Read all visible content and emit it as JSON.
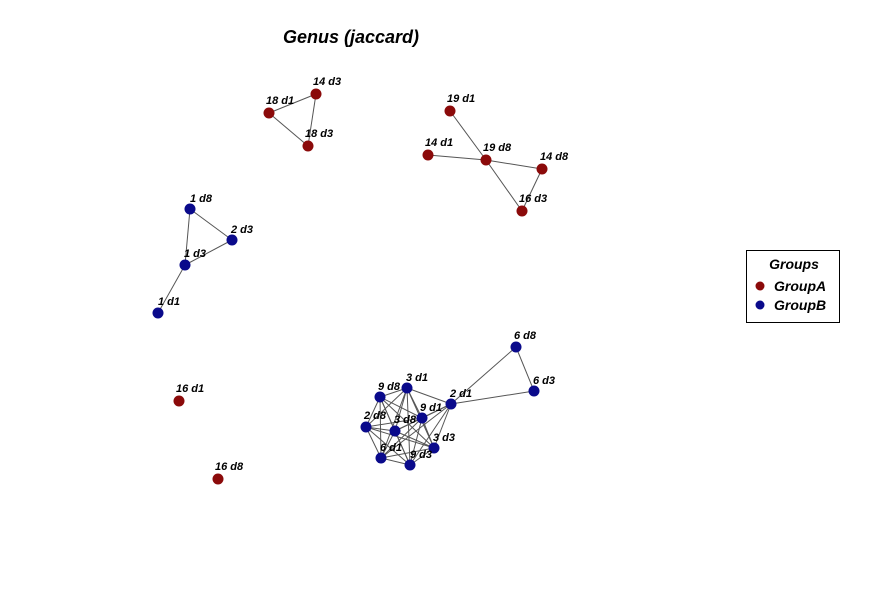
{
  "title": "Genus (jaccard)",
  "colors": {
    "GroupA": "#8b0a0a",
    "GroupB": "#0a0a8b"
  },
  "legend": {
    "title": "Groups",
    "items": [
      {
        "label": "GroupA",
        "group": "GroupA"
      },
      {
        "label": "GroupB",
        "group": "GroupB"
      }
    ]
  },
  "nodes": [
    {
      "id": "18 d1",
      "label": "18 d1",
      "group": "GroupA"
    },
    {
      "id": "14 d3",
      "label": "14 d3",
      "group": "GroupA"
    },
    {
      "id": "18 d3",
      "label": "18 d3",
      "group": "GroupA"
    },
    {
      "id": "19 d1",
      "label": "19 d1",
      "group": "GroupA"
    },
    {
      "id": "14 d1",
      "label": "14 d1",
      "group": "GroupA"
    },
    {
      "id": "19 d8",
      "label": "19 d8",
      "group": "GroupA"
    },
    {
      "id": "14 d8",
      "label": "14 d8",
      "group": "GroupA"
    },
    {
      "id": "16 d3",
      "label": "16 d3",
      "group": "GroupA"
    },
    {
      "id": "16 d1",
      "label": "16 d1",
      "group": "GroupA"
    },
    {
      "id": "16 d8",
      "label": "16 d8",
      "group": "GroupA"
    },
    {
      "id": "1 d8",
      "label": "1 d8",
      "group": "GroupB"
    },
    {
      "id": "2 d3",
      "label": "2 d3",
      "group": "GroupB"
    },
    {
      "id": "1 d3",
      "label": "1 d3",
      "group": "GroupB"
    },
    {
      "id": "1 d1",
      "label": "1 d1",
      "group": "GroupB"
    },
    {
      "id": "6 d8",
      "label": "6 d8",
      "group": "GroupB"
    },
    {
      "id": "6 d3",
      "label": "6 d3",
      "group": "GroupB"
    },
    {
      "id": "3 d1",
      "label": "3 d1",
      "group": "GroupB"
    },
    {
      "id": "9 d8",
      "label": "9 d8",
      "group": "GroupB"
    },
    {
      "id": "2 d1",
      "label": "2 d1",
      "group": "GroupB"
    },
    {
      "id": "9 d1",
      "label": "9 d1",
      "group": "GroupB"
    },
    {
      "id": "2 d8",
      "label": "2 d8",
      "group": "GroupB"
    },
    {
      "id": "3 d8",
      "label": "3 d8",
      "group": "GroupB"
    },
    {
      "id": "3 d3",
      "label": "3 d3",
      "group": "GroupB"
    },
    {
      "id": "6 d1",
      "label": "6 d1",
      "group": "GroupB"
    },
    {
      "id": "9 d3",
      "label": "9 d3",
      "group": "GroupB"
    }
  ],
  "edges": [
    [
      "18 d1",
      "14 d3"
    ],
    [
      "18 d1",
      "18 d3"
    ],
    [
      "14 d3",
      "18 d3"
    ],
    [
      "19 d1",
      "19 d8"
    ],
    [
      "14 d1",
      "19 d8"
    ],
    [
      "19 d8",
      "14 d8"
    ],
    [
      "19 d8",
      "16 d3"
    ],
    [
      "14 d8",
      "16 d3"
    ],
    [
      "1 d8",
      "2 d3"
    ],
    [
      "1 d8",
      "1 d3"
    ],
    [
      "2 d3",
      "1 d3"
    ],
    [
      "1 d3",
      "1 d1"
    ],
    [
      "6 d8",
      "6 d3"
    ],
    [
      "6 d8",
      "2 d1"
    ],
    [
      "6 d3",
      "2 d1"
    ],
    [
      "2 d1",
      "9 d1"
    ],
    [
      "2 d1",
      "3 d1"
    ],
    [
      "2 d1",
      "3 d8"
    ],
    [
      "2 d1",
      "3 d3"
    ],
    [
      "2 d1",
      "9 d3"
    ],
    [
      "2 d1",
      "6 d1"
    ],
    [
      "9 d8",
      "3 d1"
    ],
    [
      "9 d8",
      "9 d1"
    ],
    [
      "9 d8",
      "2 d8"
    ],
    [
      "9 d8",
      "3 d8"
    ],
    [
      "9 d8",
      "3 d3"
    ],
    [
      "9 d8",
      "6 d1"
    ],
    [
      "9 d8",
      "9 d3"
    ],
    [
      "3 d1",
      "9 d1"
    ],
    [
      "3 d1",
      "2 d8"
    ],
    [
      "3 d1",
      "3 d8"
    ],
    [
      "3 d1",
      "3 d3"
    ],
    [
      "3 d1",
      "6 d1"
    ],
    [
      "3 d1",
      "9 d3"
    ],
    [
      "9 d1",
      "2 d8"
    ],
    [
      "9 d1",
      "3 d8"
    ],
    [
      "9 d1",
      "3 d3"
    ],
    [
      "9 d1",
      "6 d1"
    ],
    [
      "9 d1",
      "9 d3"
    ],
    [
      "2 d8",
      "3 d8"
    ],
    [
      "2 d8",
      "3 d3"
    ],
    [
      "2 d8",
      "6 d1"
    ],
    [
      "2 d8",
      "9 d3"
    ],
    [
      "3 d8",
      "3 d3"
    ],
    [
      "3 d8",
      "6 d1"
    ],
    [
      "3 d8",
      "9 d3"
    ],
    [
      "3 d3",
      "6 d1"
    ],
    [
      "3 d3",
      "9 d3"
    ],
    [
      "6 d1",
      "9 d3"
    ]
  ]
}
